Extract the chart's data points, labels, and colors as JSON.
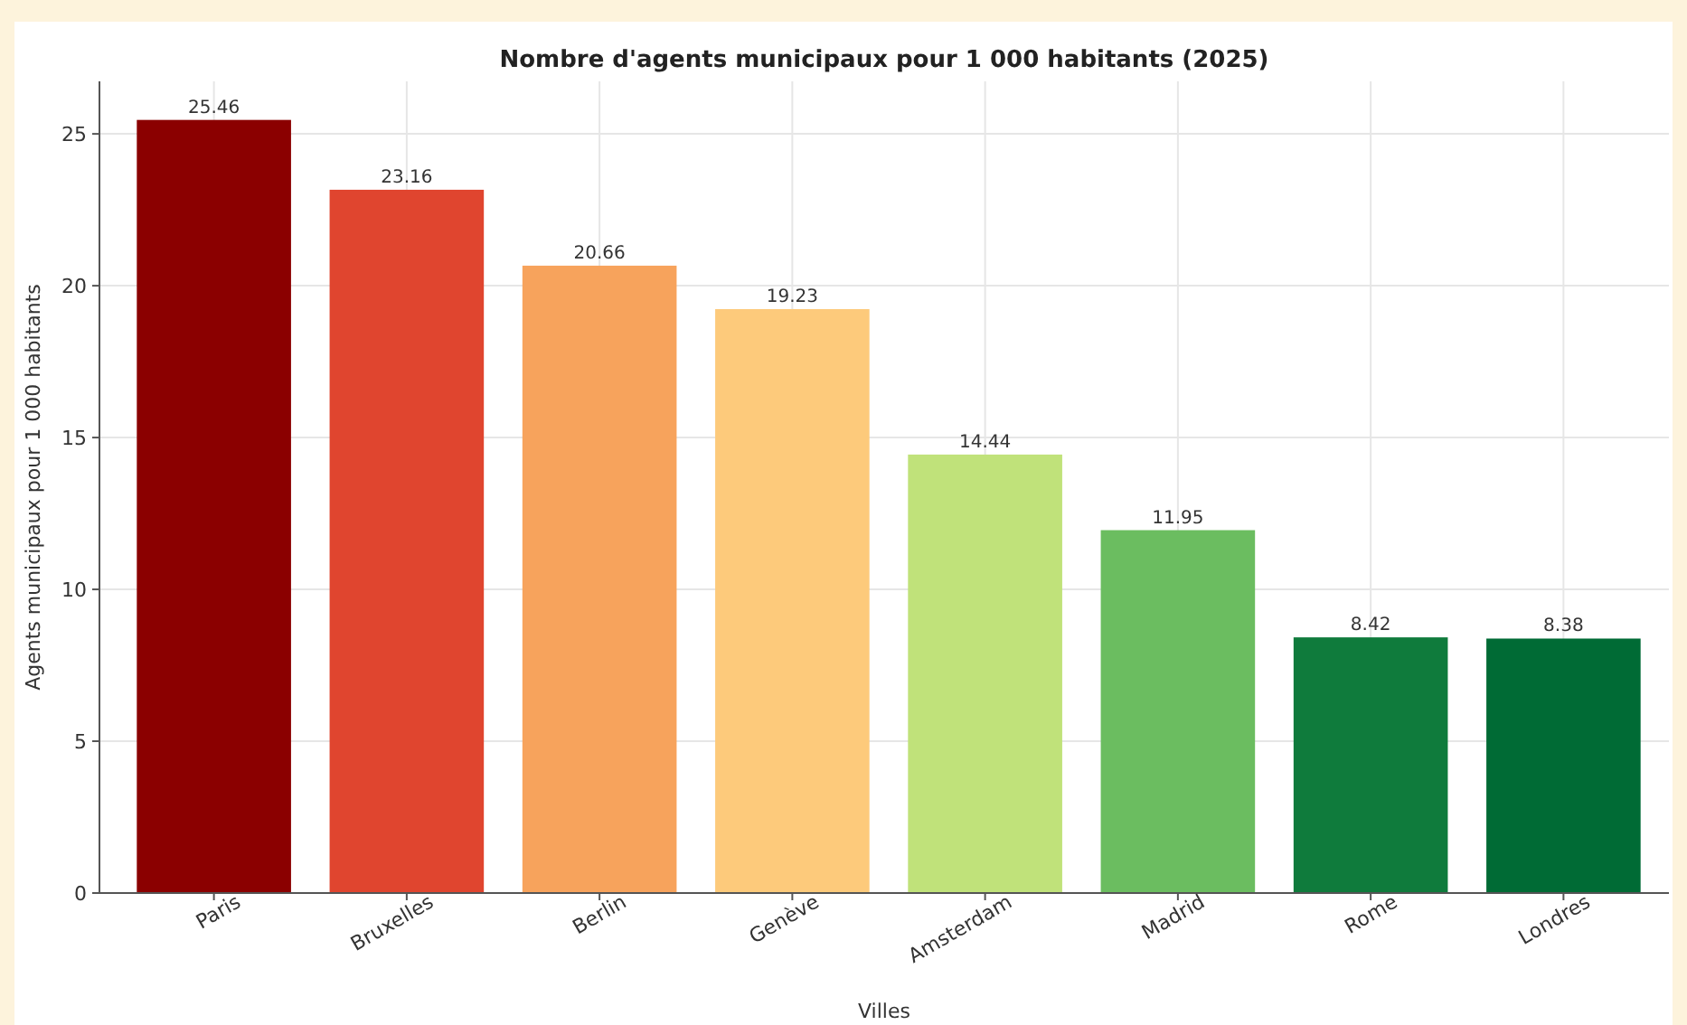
{
  "chart_data": {
    "type": "bar",
    "title": "Nombre d'agents municipaux pour 1 000 habitants (2025)",
    "xlabel": "Villes",
    "ylabel": "Agents municipaux pour 1 000 habitants",
    "categories": [
      "Paris",
      "Bruxelles",
      "Berlin",
      "Genève",
      "Amsterdam",
      "Madrid",
      "Rome",
      "Londres"
    ],
    "values": [
      25.46,
      23.16,
      20.66,
      19.23,
      14.44,
      11.95,
      8.42,
      8.38
    ],
    "colors": [
      "#8b0000",
      "#e0452f",
      "#f7a35c",
      "#fdca7b",
      "#c0e27a",
      "#6bbd60",
      "#0f7b3c",
      "#006b35"
    ],
    "ylim": [
      0,
      26.73
    ],
    "yticks": [
      0,
      5,
      10,
      15,
      20,
      25
    ],
    "grid": true,
    "data_labels": true
  }
}
